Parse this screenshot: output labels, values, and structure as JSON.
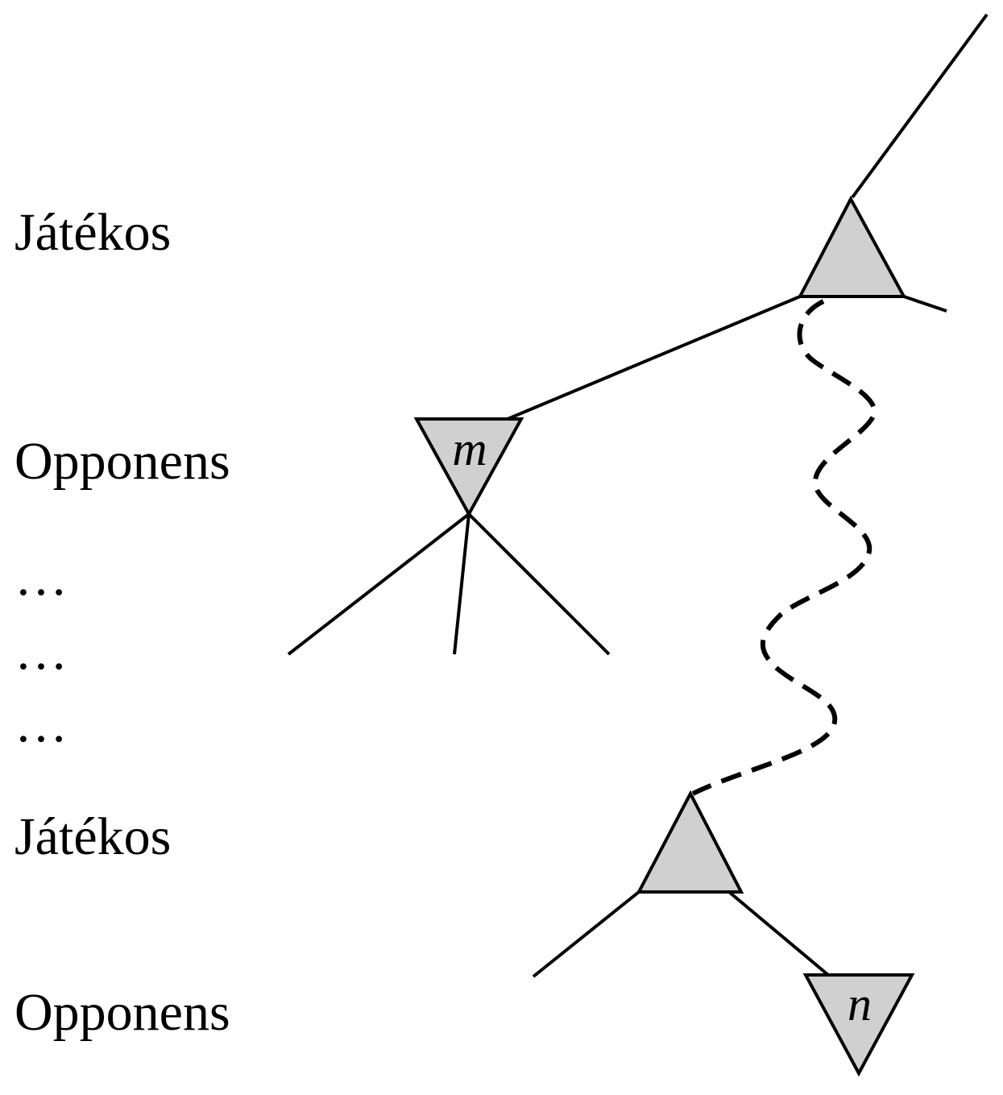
{
  "levels": {
    "row1": "Játékos",
    "row2": "Opponens",
    "dots1": "…",
    "dots2": "…",
    "dots3": "…",
    "row3": "Játékos",
    "row4": "Opponens"
  },
  "nodes": {
    "m": "m",
    "n": "n"
  },
  "colors": {
    "node_fill": "#d0d0d0",
    "line": "#000000"
  }
}
